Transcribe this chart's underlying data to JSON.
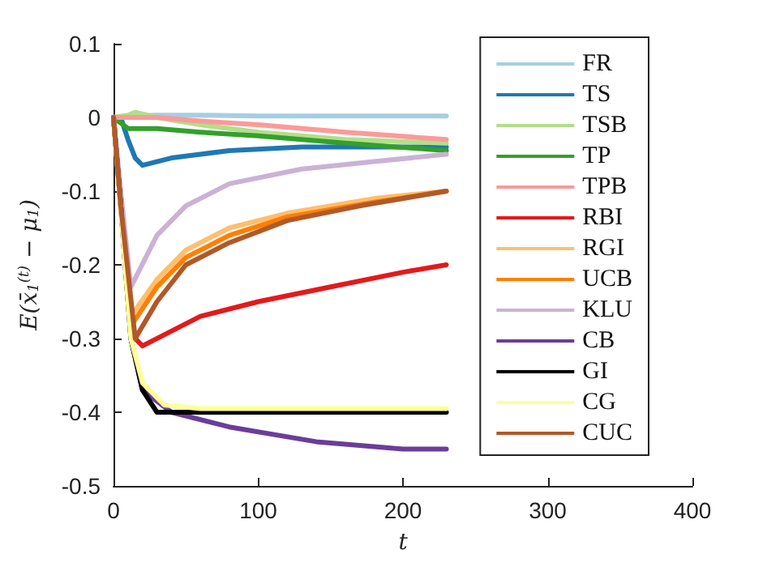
{
  "chart_data": {
    "type": "line",
    "xlabel": "t",
    "ylabel": "E(x̄$_{1}$$^{(t)}$ − μ$_{1}$)",
    "xlim": [
      0,
      400
    ],
    "xticks": [
      0,
      100,
      200,
      300,
      400
    ],
    "ylim": [
      -0.5,
      0.1
    ],
    "yticks": [
      -0.5,
      -0.4,
      -0.3,
      -0.2,
      -0.1,
      0,
      0.1
    ],
    "grid": false,
    "legend": "top right",
    "marker": "none",
    "series": [
      {
        "name": "FR",
        "color": "#a6cee3",
        "x": [
          0,
          10,
          30,
          60,
          100,
          160,
          230
        ],
        "values": [
          0,
          0.002,
          0.003,
          0.003,
          0.002,
          0.002,
          0.002
        ]
      },
      {
        "name": "TS",
        "color": "#1f78b4",
        "x": [
          0,
          5,
          10,
          15,
          20,
          30,
          40,
          60,
          80,
          130,
          200,
          230
        ],
        "values": [
          0,
          0,
          -0.03,
          -0.055,
          -0.065,
          -0.06,
          -0.055,
          -0.05,
          -0.045,
          -0.04,
          -0.04,
          -0.04
        ]
      },
      {
        "name": "TSB",
        "color": "#b2df8a",
        "x": [
          0,
          10,
          15,
          30,
          60,
          100,
          160,
          230
        ],
        "values": [
          0,
          0.003,
          0.007,
          0,
          -0.01,
          -0.02,
          -0.03,
          -0.035
        ]
      },
      {
        "name": "TP",
        "color": "#33a02c",
        "x": [
          0,
          10,
          30,
          60,
          100,
          160,
          230
        ],
        "values": [
          0,
          -0.015,
          -0.015,
          -0.02,
          -0.025,
          -0.035,
          -0.045
        ]
      },
      {
        "name": "TPB",
        "color": "#fb9a99",
        "x": [
          0,
          10,
          30,
          60,
          100,
          160,
          230
        ],
        "values": [
          0,
          0,
          0,
          -0.005,
          -0.01,
          -0.02,
          -0.03
        ]
      },
      {
        "name": "RBI",
        "color": "#e31a1c",
        "x": [
          0,
          5,
          10,
          15,
          20,
          40,
          60,
          100,
          150,
          200,
          230
        ],
        "values": [
          0,
          -0.12,
          -0.25,
          -0.3,
          -0.31,
          -0.29,
          -0.27,
          -0.25,
          -0.23,
          -0.21,
          -0.2
        ]
      },
      {
        "name": "RGI",
        "color": "#fdbf6f",
        "x": [
          0,
          5,
          12,
          30,
          50,
          80,
          120,
          180,
          230
        ],
        "values": [
          0,
          -0.12,
          -0.27,
          -0.22,
          -0.18,
          -0.15,
          -0.13,
          -0.11,
          -0.1
        ]
      },
      {
        "name": "UCB",
        "color": "#ff7f00",
        "x": [
          0,
          5,
          13,
          30,
          50,
          80,
          120,
          180,
          230
        ],
        "values": [
          0,
          -0.12,
          -0.28,
          -0.23,
          -0.19,
          -0.16,
          -0.135,
          -0.115,
          -0.1
        ]
      },
      {
        "name": "KLU",
        "color": "#cab2d6",
        "x": [
          0,
          5,
          12,
          30,
          50,
          80,
          130,
          180,
          230
        ],
        "values": [
          0,
          -0.1,
          -0.23,
          -0.16,
          -0.12,
          -0.09,
          -0.07,
          -0.06,
          -0.05
        ]
      },
      {
        "name": "CB",
        "color": "#6a3d9a",
        "x": [
          0,
          5,
          12,
          20,
          40,
          80,
          140,
          200,
          230
        ],
        "values": [
          0,
          -0.12,
          -0.3,
          -0.37,
          -0.4,
          -0.42,
          -0.44,
          -0.45,
          -0.45
        ]
      },
      {
        "name": "GI",
        "color": "#000000",
        "x": [
          0,
          5,
          12,
          20,
          30,
          60,
          100,
          160,
          230
        ],
        "values": [
          0,
          -0.12,
          -0.3,
          -0.37,
          -0.4,
          -0.4,
          -0.4,
          -0.4,
          -0.4
        ]
      },
      {
        "name": "CG",
        "color": "#ffff99",
        "x": [
          0,
          12,
          20,
          35,
          60,
          100,
          160,
          230
        ],
        "values": [
          0,
          -0.3,
          -0.36,
          -0.39,
          -0.395,
          -0.395,
          -0.395,
          -0.395
        ]
      },
      {
        "name": "CUC",
        "color": "#b15928",
        "x": [
          0,
          5,
          15,
          30,
          50,
          80,
          120,
          170,
          230
        ],
        "values": [
          0,
          -0.12,
          -0.3,
          -0.25,
          -0.2,
          -0.17,
          -0.14,
          -0.12,
          -0.1
        ]
      }
    ]
  }
}
